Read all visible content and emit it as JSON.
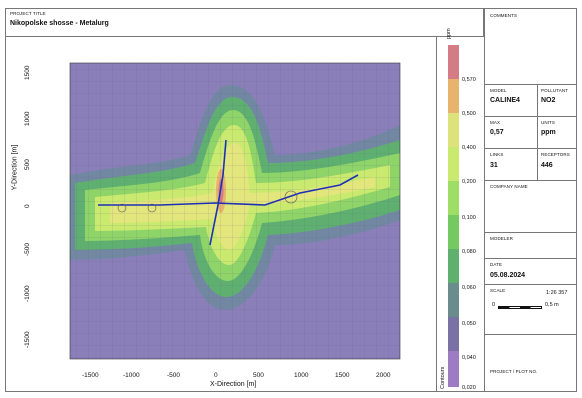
{
  "project": {
    "label": "PROJECT TITLE",
    "title": "Nikopolske shosse - Metalurg"
  },
  "plot": {
    "x_axis_title": "X-Direction [m]",
    "y_axis_title": "Y-Direction [m]",
    "x_ticks": [
      "-1500",
      "-1000",
      "-500",
      "0",
      "500",
      "1000",
      "1500",
      "2000"
    ],
    "y_ticks": [
      "1500",
      "1000",
      "500",
      "0",
      "-500",
      "-1000",
      "-1500"
    ]
  },
  "colorbar": {
    "unit": "ppm",
    "side_label": "Contours",
    "ticks": [
      "0,570",
      "0,500",
      "0,400",
      "0,200",
      "0,100",
      "0,080",
      "0,060",
      "0,050",
      "0,040",
      "0,020"
    ],
    "colors": [
      "#d47c86",
      "#e8b36c",
      "#dde27a",
      "#c9ea6f",
      "#9fde66",
      "#74c960",
      "#5fb06e",
      "#6a8c8d",
      "#7a72a5",
      "#9d7cc4"
    ]
  },
  "panel": {
    "comments_label": "COMMENTS",
    "model_label": "MODEL",
    "model_value": "CALINE4",
    "pollutant_label": "POLLUTANT",
    "pollutant_value": "NO2",
    "max_label": "MAX",
    "max_value": "0,57",
    "units_label": "UNITS",
    "units_value": "ppm",
    "links_label": "LINKS",
    "links_value": "31",
    "receptors_label": "RECEPTORS",
    "receptors_value": "446",
    "company_label": "COMPANY NAME",
    "modeler_label": "MODELER",
    "date_label": "DATE",
    "date_value": "05.08.2024",
    "scale_label": "SCALE",
    "scale_value": "1:26 357",
    "scale_bar_start": "0",
    "scale_bar_end": "0,5 m",
    "project_plot_label": "PROJECT / PLOT NO."
  }
}
